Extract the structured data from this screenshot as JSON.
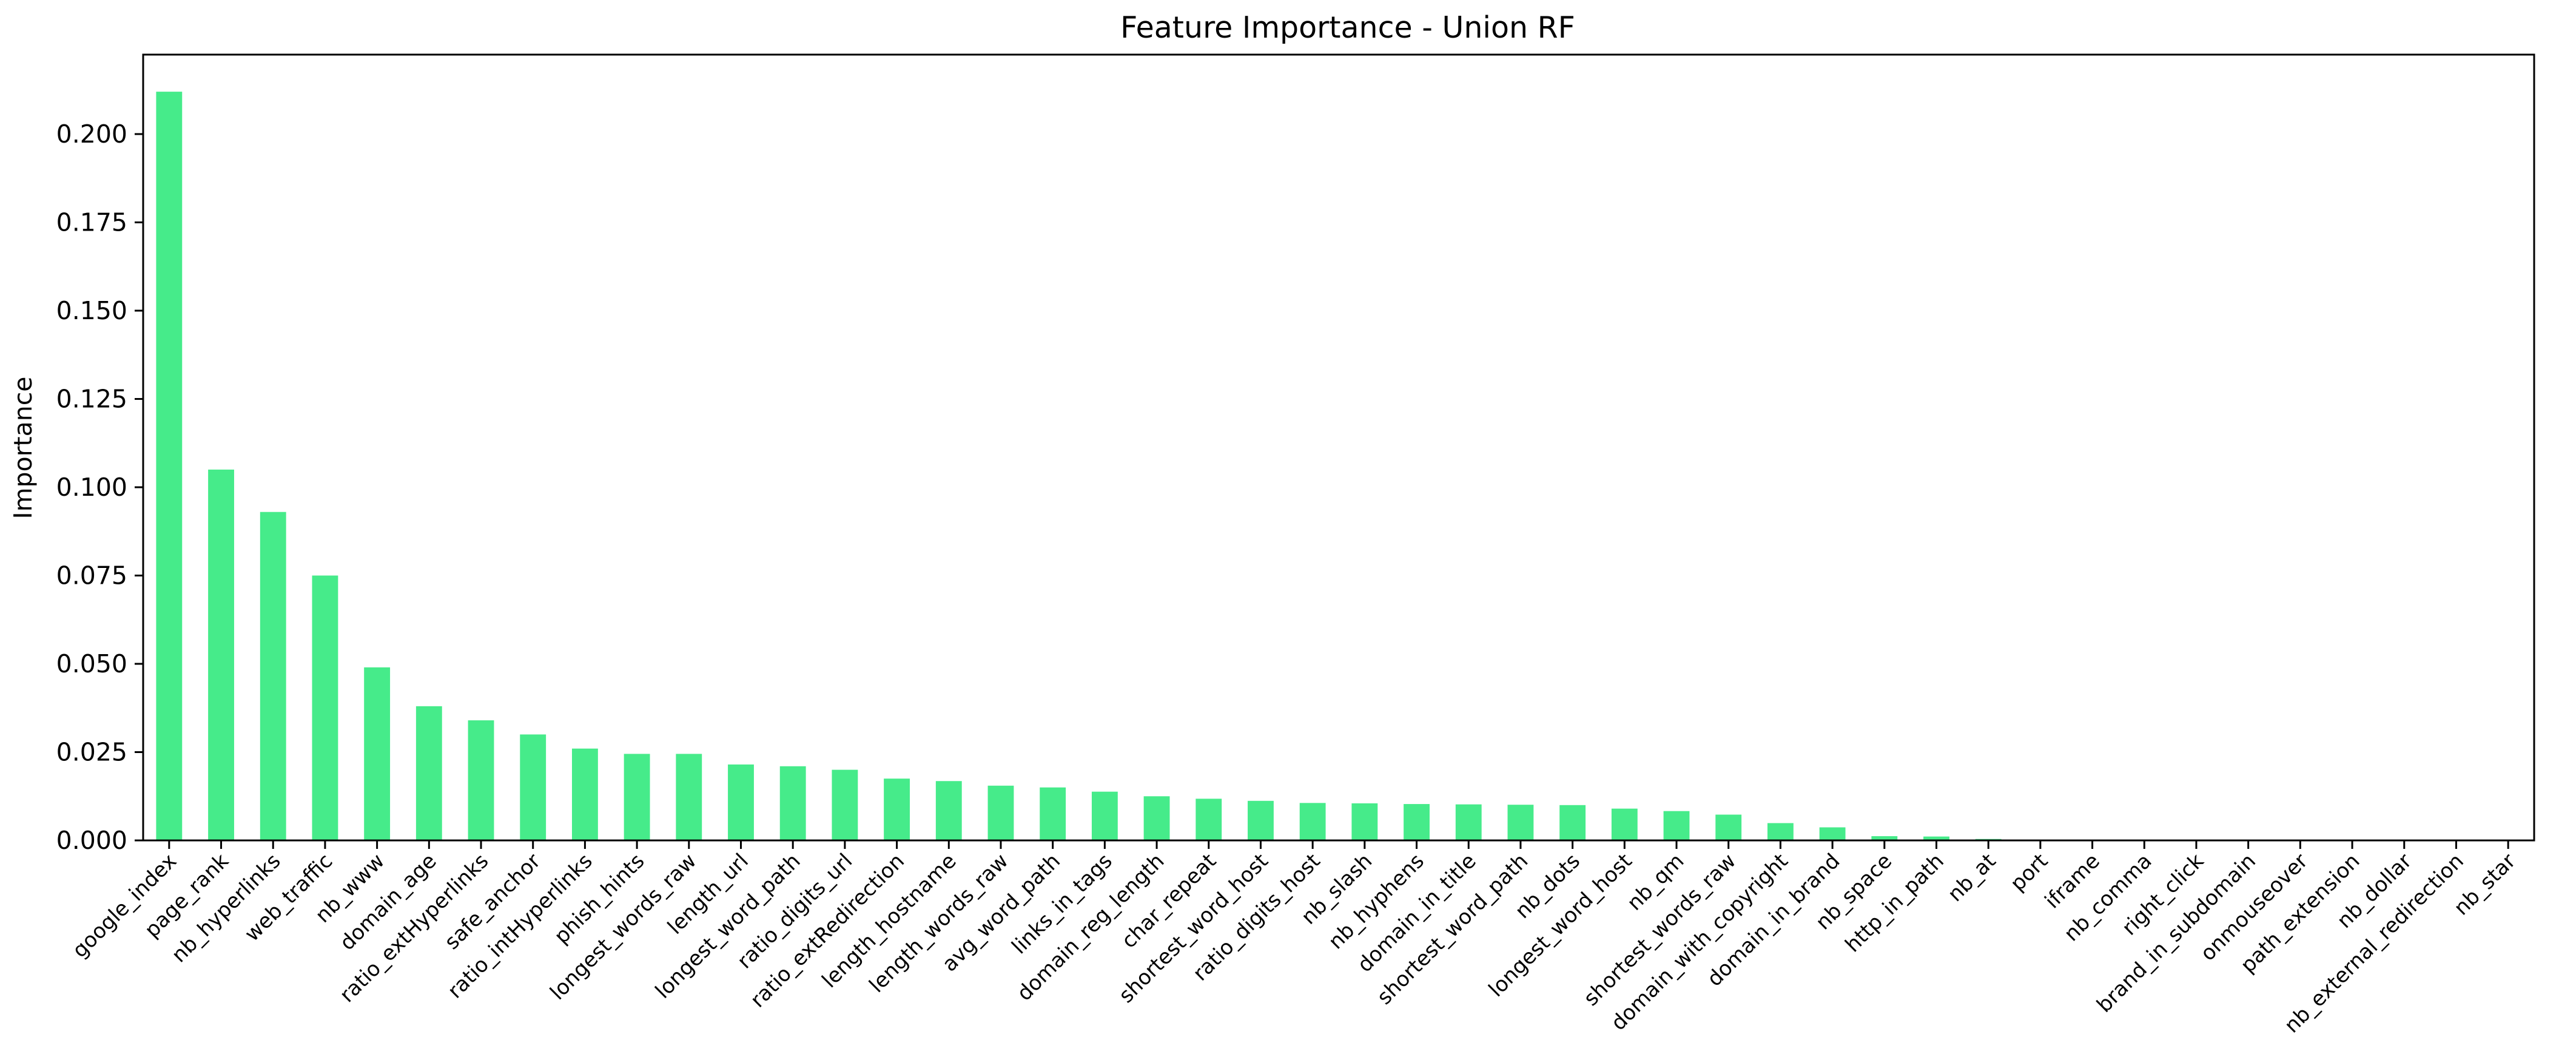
{
  "chart_data": {
    "type": "bar",
    "title": "Feature Importance - Union RF",
    "xlabel": "",
    "ylabel": "Importance",
    "ylim": [
      0,
      0.2225
    ],
    "yticks": [
      0.0,
      0.025,
      0.05,
      0.075,
      0.1,
      0.125,
      0.15,
      0.175,
      0.2
    ],
    "ytick_labels": [
      "0.000",
      "0.025",
      "0.050",
      "0.075",
      "0.100",
      "0.125",
      "0.150",
      "0.175",
      "0.200"
    ],
    "grid": false,
    "legend": "none",
    "bar_color": "#46eb8a",
    "categories": [
      "google_index",
      "page_rank",
      "nb_hyperlinks",
      "web_traffic",
      "nb_www",
      "domain_age",
      "ratio_extHyperlinks",
      "safe_anchor",
      "ratio_intHyperlinks",
      "phish_hints",
      "longest_words_raw",
      "length_url",
      "longest_word_path",
      "ratio_digits_url",
      "ratio_extRedirection",
      "length_hostname",
      "length_words_raw",
      "avg_word_path",
      "links_in_tags",
      "domain_reg_length",
      "char_repeat",
      "shortest_word_host",
      "ratio_digits_host",
      "nb_slash",
      "nb_hyphens",
      "domain_in_title",
      "shortest_word_path",
      "nb_dots",
      "longest_word_host",
      "nb_qm",
      "shortest_words_raw",
      "domain_with_copyright",
      "domain_in_brand",
      "nb_space",
      "http_in_path",
      "nb_at",
      "port",
      "iframe",
      "nb_comma",
      "right_click",
      "brand_in_subdomain",
      "onmouseover",
      "path_extension",
      "nb_dollar",
      "nb_external_redirection",
      "nb_star"
    ],
    "values": [
      0.212,
      0.105,
      0.093,
      0.075,
      0.049,
      0.038,
      0.034,
      0.03,
      0.026,
      0.0245,
      0.0245,
      0.0215,
      0.021,
      0.02,
      0.0175,
      0.0168,
      0.0155,
      0.015,
      0.0138,
      0.0125,
      0.0118,
      0.0112,
      0.0106,
      0.0105,
      0.0103,
      0.0102,
      0.0101,
      0.01,
      0.009,
      0.0083,
      0.0073,
      0.0049,
      0.0037,
      0.0012,
      0.0011,
      0.0004,
      0.0002,
      0.0001,
      0.0001,
      5e-05,
      4e-05,
      3e-05,
      2e-05,
      2e-05,
      1e-05,
      1e-05
    ]
  }
}
